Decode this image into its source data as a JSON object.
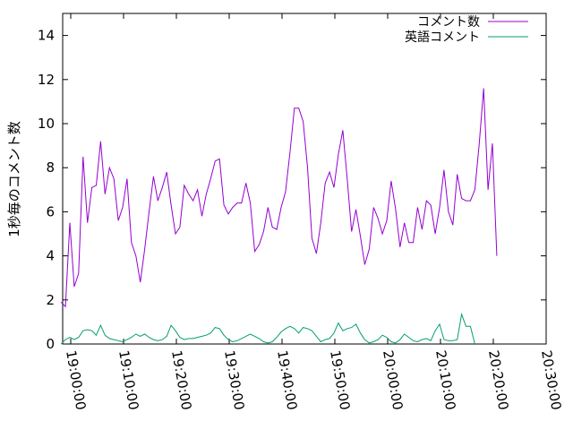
{
  "chart_data": {
    "type": "line",
    "ylabel": "1秒毎のコメント数",
    "xlabel": "",
    "ylim": [
      0,
      15
    ],
    "xlim": [
      "19:00:00",
      "20:30:00"
    ],
    "yticks": [
      0,
      2,
      4,
      6,
      8,
      10,
      12,
      14
    ],
    "xticks": [
      "19:00:00",
      "19:10:00",
      "19:20:00",
      "19:30:00",
      "19:40:00",
      "19:50:00",
      "20:00:00",
      "20:10:00",
      "20:20:00",
      "20:30:00"
    ],
    "grid": false,
    "legend_position": "top-right",
    "series": [
      {
        "name": "コメント数",
        "color": "#9400d3",
        "points": [
          [
            "18:58:10",
            1.9
          ],
          [
            "18:59:00",
            1.7
          ],
          [
            "18:59:50",
            5.5
          ],
          [
            "19:00:40",
            2.6
          ],
          [
            "19:01:30",
            3.2
          ],
          [
            "19:02:20",
            8.5
          ],
          [
            "19:03:10",
            5.5
          ],
          [
            "19:04:00",
            7.1
          ],
          [
            "19:04:50",
            7.2
          ],
          [
            "19:05:40",
            9.2
          ],
          [
            "19:06:30",
            6.8
          ],
          [
            "19:07:20",
            8.0
          ],
          [
            "19:08:10",
            7.5
          ],
          [
            "19:09:00",
            5.6
          ],
          [
            "19:09:50",
            6.2
          ],
          [
            "19:10:40",
            7.5
          ],
          [
            "19:11:30",
            4.6
          ],
          [
            "19:12:20",
            4.0
          ],
          [
            "19:13:10",
            2.8
          ],
          [
            "19:14:00",
            4.3
          ],
          [
            "19:14:50",
            6.0
          ],
          [
            "19:15:40",
            7.6
          ],
          [
            "19:16:30",
            6.5
          ],
          [
            "19:17:20",
            7.1
          ],
          [
            "19:18:10",
            7.8
          ],
          [
            "19:19:00",
            6.3
          ],
          [
            "19:19:50",
            5.0
          ],
          [
            "19:20:40",
            5.3
          ],
          [
            "19:21:30",
            7.2
          ],
          [
            "19:22:20",
            6.8
          ],
          [
            "19:23:10",
            6.5
          ],
          [
            "19:24:00",
            7.0
          ],
          [
            "19:24:50",
            5.8
          ],
          [
            "19:25:40",
            6.8
          ],
          [
            "19:26:30",
            7.5
          ],
          [
            "19:27:20",
            8.3
          ],
          [
            "19:28:10",
            8.4
          ],
          [
            "19:29:00",
            6.3
          ],
          [
            "19:29:50",
            5.9
          ],
          [
            "19:30:40",
            6.2
          ],
          [
            "19:31:30",
            6.4
          ],
          [
            "19:32:20",
            6.4
          ],
          [
            "19:33:10",
            7.3
          ],
          [
            "19:34:00",
            6.4
          ],
          [
            "19:34:50",
            4.2
          ],
          [
            "19:35:40",
            4.5
          ],
          [
            "19:36:30",
            5.1
          ],
          [
            "19:37:20",
            6.2
          ],
          [
            "19:38:10",
            5.3
          ],
          [
            "19:39:00",
            5.2
          ],
          [
            "19:39:50",
            6.2
          ],
          [
            "19:40:40",
            6.9
          ],
          [
            "19:41:30",
            8.7
          ],
          [
            "19:42:20",
            10.7
          ],
          [
            "19:43:10",
            10.7
          ],
          [
            "19:44:00",
            10.1
          ],
          [
            "19:44:50",
            8.0
          ],
          [
            "19:45:40",
            4.8
          ],
          [
            "19:46:30",
            4.1
          ],
          [
            "19:47:20",
            5.5
          ],
          [
            "19:48:10",
            7.3
          ],
          [
            "19:49:00",
            7.8
          ],
          [
            "19:49:50",
            7.1
          ],
          [
            "19:50:40",
            8.6
          ],
          [
            "19:51:30",
            9.7
          ],
          [
            "19:52:20",
            7.5
          ],
          [
            "19:53:10",
            5.1
          ],
          [
            "19:54:00",
            6.1
          ],
          [
            "19:54:50",
            4.9
          ],
          [
            "19:55:40",
            3.6
          ],
          [
            "19:56:30",
            4.3
          ],
          [
            "19:57:20",
            6.2
          ],
          [
            "19:58:10",
            5.7
          ],
          [
            "19:59:00",
            5.0
          ],
          [
            "19:59:50",
            5.6
          ],
          [
            "20:00:40",
            7.4
          ],
          [
            "20:01:30",
            6.1
          ],
          [
            "20:02:20",
            4.4
          ],
          [
            "20:03:10",
            5.5
          ],
          [
            "20:04:00",
            4.6
          ],
          [
            "20:04:50",
            4.6
          ],
          [
            "20:05:40",
            6.2
          ],
          [
            "20:06:30",
            5.2
          ],
          [
            "20:07:20",
            6.5
          ],
          [
            "20:08:10",
            6.3
          ],
          [
            "20:09:00",
            5.0
          ],
          [
            "20:09:50",
            6.2
          ],
          [
            "20:10:40",
            7.9
          ],
          [
            "20:11:30",
            6.0
          ],
          [
            "20:12:20",
            5.4
          ],
          [
            "20:13:10",
            7.7
          ],
          [
            "20:14:00",
            6.6
          ],
          [
            "20:14:50",
            6.5
          ],
          [
            "20:15:40",
            6.5
          ],
          [
            "20:16:30",
            7.0
          ],
          [
            "20:17:20",
            9.1
          ],
          [
            "20:18:10",
            11.6
          ],
          [
            "20:19:00",
            7.0
          ],
          [
            "20:19:50",
            9.1
          ],
          [
            "20:20:40",
            4.0
          ]
        ]
      },
      {
        "name": "英語コメント",
        "color": "#009e73",
        "points": [
          [
            "18:58:10",
            0.0
          ],
          [
            "18:59:00",
            0.2
          ],
          [
            "18:59:50",
            0.3
          ],
          [
            "19:00:40",
            0.2
          ],
          [
            "19:01:30",
            0.3
          ],
          [
            "19:02:20",
            0.6
          ],
          [
            "19:03:10",
            0.65
          ],
          [
            "19:04:00",
            0.6
          ],
          [
            "19:04:50",
            0.4
          ],
          [
            "19:05:40",
            0.85
          ],
          [
            "19:06:30",
            0.4
          ],
          [
            "19:07:20",
            0.25
          ],
          [
            "19:08:10",
            0.2
          ],
          [
            "19:09:00",
            0.15
          ],
          [
            "19:09:50",
            0.1
          ],
          [
            "19:10:40",
            0.2
          ],
          [
            "19:11:30",
            0.3
          ],
          [
            "19:12:20",
            0.45
          ],
          [
            "19:13:10",
            0.35
          ],
          [
            "19:14:00",
            0.45
          ],
          [
            "19:14:50",
            0.3
          ],
          [
            "19:15:40",
            0.2
          ],
          [
            "19:16:30",
            0.15
          ],
          [
            "19:17:20",
            0.2
          ],
          [
            "19:18:10",
            0.35
          ],
          [
            "19:19:00",
            0.85
          ],
          [
            "19:19:50",
            0.6
          ],
          [
            "19:20:40",
            0.3
          ],
          [
            "19:21:30",
            0.2
          ],
          [
            "19:22:20",
            0.25
          ],
          [
            "19:23:10",
            0.25
          ],
          [
            "19:24:00",
            0.3
          ],
          [
            "19:24:50",
            0.35
          ],
          [
            "19:25:40",
            0.4
          ],
          [
            "19:26:30",
            0.5
          ],
          [
            "19:27:20",
            0.75
          ],
          [
            "19:28:10",
            0.7
          ],
          [
            "19:29:00",
            0.4
          ],
          [
            "19:29:50",
            0.2
          ],
          [
            "19:30:40",
            0.1
          ],
          [
            "19:31:30",
            0.15
          ],
          [
            "19:32:20",
            0.25
          ],
          [
            "19:33:10",
            0.35
          ],
          [
            "19:34:00",
            0.45
          ],
          [
            "19:34:50",
            0.35
          ],
          [
            "19:35:40",
            0.25
          ],
          [
            "19:36:30",
            0.1
          ],
          [
            "19:37:20",
            0.05
          ],
          [
            "19:38:10",
            0.1
          ],
          [
            "19:39:00",
            0.3
          ],
          [
            "19:39:50",
            0.55
          ],
          [
            "19:40:40",
            0.7
          ],
          [
            "19:41:30",
            0.8
          ],
          [
            "19:42:20",
            0.7
          ],
          [
            "19:43:10",
            0.5
          ],
          [
            "19:44:00",
            0.75
          ],
          [
            "19:44:50",
            0.7
          ],
          [
            "19:45:40",
            0.6
          ],
          [
            "19:46:30",
            0.35
          ],
          [
            "19:47:20",
            0.1
          ],
          [
            "19:48:10",
            0.2
          ],
          [
            "19:49:00",
            0.25
          ],
          [
            "19:49:50",
            0.5
          ],
          [
            "19:50:40",
            0.95
          ],
          [
            "19:51:30",
            0.6
          ],
          [
            "19:52:20",
            0.7
          ],
          [
            "19:53:10",
            0.75
          ],
          [
            "19:54:00",
            0.9
          ],
          [
            "19:54:50",
            0.5
          ],
          [
            "19:55:40",
            0.2
          ],
          [
            "19:56:30",
            0.05
          ],
          [
            "19:57:20",
            0.1
          ],
          [
            "19:58:10",
            0.2
          ],
          [
            "19:59:00",
            0.4
          ],
          [
            "19:59:50",
            0.3
          ],
          [
            "20:00:40",
            0.1
          ],
          [
            "20:01:30",
            0.05
          ],
          [
            "20:02:20",
            0.2
          ],
          [
            "20:03:10",
            0.45
          ],
          [
            "20:04:00",
            0.3
          ],
          [
            "20:04:50",
            0.15
          ],
          [
            "20:05:40",
            0.1
          ],
          [
            "20:06:30",
            0.2
          ],
          [
            "20:07:20",
            0.25
          ],
          [
            "20:08:10",
            0.15
          ],
          [
            "20:09:00",
            0.6
          ],
          [
            "20:09:50",
            0.9
          ],
          [
            "20:10:40",
            0.2
          ],
          [
            "20:11:30",
            0.15
          ],
          [
            "20:12:20",
            0.15
          ],
          [
            "20:13:10",
            0.2
          ],
          [
            "20:14:00",
            1.35
          ],
          [
            "20:14:50",
            0.8
          ],
          [
            "20:15:40",
            0.8
          ],
          [
            "20:16:30",
            0.0
          ]
        ]
      }
    ]
  }
}
